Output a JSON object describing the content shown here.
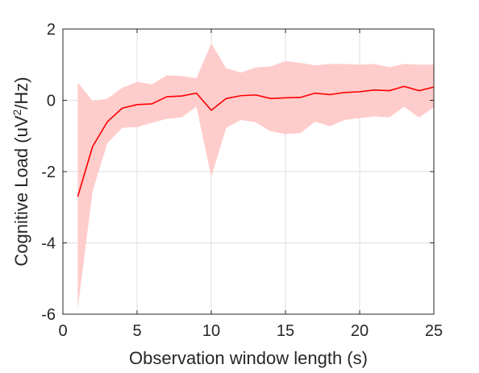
{
  "chart_data": {
    "type": "line",
    "xlabel": "Observation window length (s)",
    "ylabel": {
      "main": "Cognitive Load (uV",
      "sup": "2",
      "rest": "/Hz)"
    },
    "xlim": [
      0,
      25
    ],
    "ylim": [
      -6,
      2
    ],
    "xticks": [
      0,
      5,
      10,
      15,
      20,
      25
    ],
    "yticks": [
      -6,
      -4,
      -2,
      0,
      2
    ],
    "grid": true,
    "x": [
      1,
      2,
      3,
      4,
      5,
      6,
      7,
      8,
      9,
      10,
      11,
      12,
      13,
      14,
      15,
      16,
      17,
      18,
      19,
      20,
      21,
      22,
      23,
      24,
      25
    ],
    "series": [
      {
        "color": "#ff0000",
        "band_color": "#ffcccc",
        "values": [
          -2.7,
          -1.3,
          -0.6,
          -0.22,
          -0.12,
          -0.1,
          0.1,
          0.12,
          0.2,
          -0.28,
          0.05,
          0.13,
          0.15,
          0.05,
          0.07,
          0.08,
          0.2,
          0.16,
          0.22,
          0.24,
          0.29,
          0.27,
          0.39,
          0.27,
          0.37
        ],
        "upper": [
          0.5,
          -0.02,
          0.05,
          0.35,
          0.52,
          0.45,
          0.7,
          0.68,
          0.62,
          1.6,
          0.9,
          0.78,
          0.92,
          0.95,
          1.1,
          1.05,
          0.98,
          1.02,
          1.02,
          1.0,
          1.02,
          0.93,
          1.02,
          1.0,
          1.0
        ],
        "lower": [
          -5.85,
          -2.55,
          -1.2,
          -0.77,
          -0.75,
          -0.63,
          -0.52,
          -0.48,
          -0.18,
          -2.15,
          -0.78,
          -0.55,
          -0.62,
          -0.87,
          -0.95,
          -0.92,
          -0.6,
          -0.73,
          -0.55,
          -0.5,
          -0.45,
          -0.48,
          -0.18,
          -0.48,
          -0.2
        ]
      }
    ]
  }
}
